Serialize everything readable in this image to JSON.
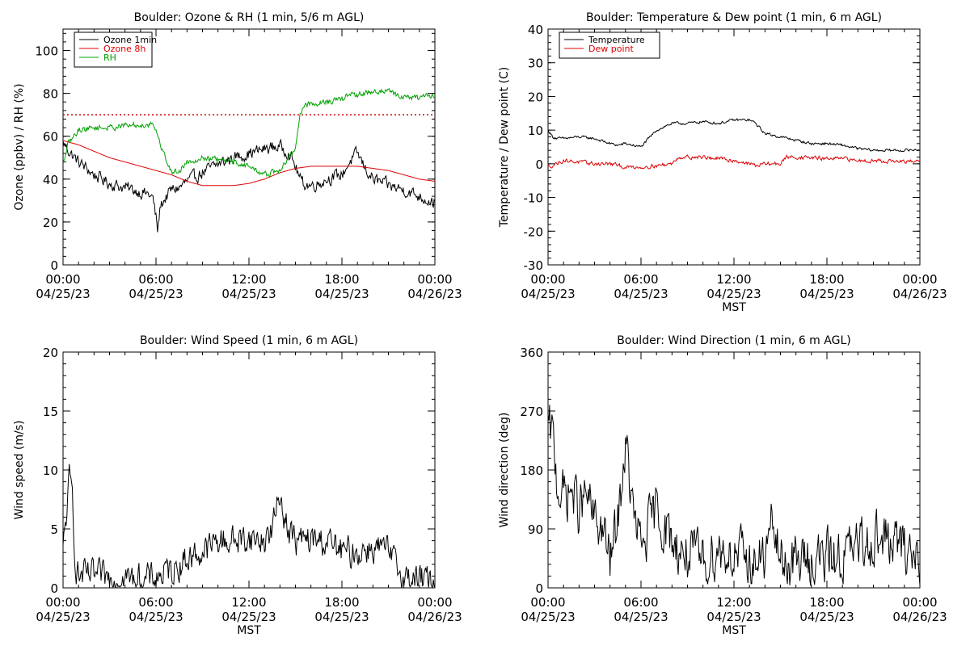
{
  "chart_data": [
    {
      "type": "line",
      "title": "Boulder: Ozone & RH (1 min, 5/6 m AGL)",
      "xlabel": "",
      "ylabel": "Ozone (ppbv) / RH (%)",
      "x_ticks": [
        {
          "time": "00:00",
          "date": "04/25/23"
        },
        {
          "time": "06:00",
          "date": "04/25/23"
        },
        {
          "time": "12:00",
          "date": "04/25/23"
        },
        {
          "time": "18:00",
          "date": "04/25/23"
        },
        {
          "time": "00:00",
          "date": "04/26/23"
        }
      ],
      "xlim": [
        0,
        24
      ],
      "ylim": [
        0,
        110
      ],
      "y_ticks": [
        0,
        20,
        40,
        60,
        80,
        100
      ],
      "legend_position": "top-left",
      "reference_line": {
        "y": 70,
        "color": "#cc0000",
        "style": "dotted"
      },
      "series": [
        {
          "name": "Ozone 1min",
          "color": "#000000",
          "noise": 2.5,
          "x": [
            0,
            0.5,
            1,
            2,
            3,
            4,
            5,
            5.5,
            5.8,
            6,
            6.1,
            6.3,
            6.7,
            7,
            7.5,
            8,
            9,
            10,
            11,
            12,
            13,
            13.5,
            14,
            14.5,
            15,
            15.3,
            15.5,
            16,
            16.5,
            17,
            18,
            18.5,
            19,
            19.5,
            20,
            21,
            22,
            23,
            24
          ],
          "y": [
            57,
            52,
            48,
            42,
            38,
            36,
            34,
            33,
            31,
            22,
            16,
            28,
            32,
            35,
            36,
            39,
            43,
            47,
            50,
            52,
            54,
            55,
            55,
            53,
            46,
            40,
            38,
            37,
            38,
            40,
            42,
            48,
            52,
            45,
            40,
            37,
            35,
            32,
            29
          ]
        },
        {
          "name": "Ozone 8h",
          "color": "#dd0000",
          "noise": 0,
          "x": [
            0,
            1,
            2,
            3,
            4,
            5,
            6,
            7,
            8,
            9,
            10,
            11,
            12,
            13,
            14,
            15,
            16,
            17,
            18,
            19,
            20,
            21,
            22,
            23,
            24
          ],
          "y": [
            58,
            56,
            53,
            50,
            48,
            46,
            44,
            42,
            39,
            37,
            37,
            37,
            38,
            40,
            43,
            45,
            46,
            46,
            46,
            46,
            45,
            44,
            42,
            40,
            39
          ]
        },
        {
          "name": "RH",
          "color": "#00a000",
          "noise": 1.2,
          "x": [
            0,
            0.3,
            1,
            2,
            3,
            4,
            5,
            5.8,
            6,
            6.2,
            6.5,
            7,
            7.5,
            8,
            9,
            10,
            11,
            12,
            13,
            14,
            14.6,
            15,
            15.3,
            15.6,
            16,
            17,
            18,
            18.5,
            19,
            20,
            21,
            22,
            23,
            24
          ],
          "y": [
            46,
            56,
            63,
            64,
            64,
            65,
            65,
            66,
            63,
            58,
            52,
            43,
            44,
            48,
            50,
            49,
            48,
            46,
            42,
            44,
            50,
            55,
            70,
            75,
            75,
            76,
            77,
            80,
            79,
            81,
            81,
            78,
            78,
            79
          ]
        }
      ]
    },
    {
      "type": "line",
      "title": "Boulder: Temperature & Dew point (1 min, 6 m AGL)",
      "xlabel": "MST",
      "ylabel": "Temperature / Dew point (C)",
      "x_ticks": [
        {
          "time": "00:00",
          "date": "04/25/23"
        },
        {
          "time": "06:00",
          "date": "04/25/23"
        },
        {
          "time": "12:00",
          "date": "04/25/23"
        },
        {
          "time": "18:00",
          "date": "04/25/23"
        },
        {
          "time": "00:00",
          "date": "04/26/23"
        }
      ],
      "xlim": [
        0,
        24
      ],
      "ylim": [
        -30,
        40
      ],
      "y_ticks": [
        -30,
        -20,
        -10,
        0,
        10,
        20,
        30,
        40
      ],
      "legend_position": "top-left",
      "series": [
        {
          "name": "Temperature",
          "color": "#000000",
          "noise": 0.35,
          "x": [
            0,
            0.3,
            0.6,
            1,
            2,
            3,
            4,
            4.5,
            5,
            5.5,
            6,
            7,
            8,
            9,
            10,
            11,
            12,
            13,
            13.4,
            14,
            15,
            16,
            17,
            18,
            19,
            20,
            21,
            22,
            23,
            24
          ],
          "y": [
            10,
            8,
            7.5,
            7.5,
            8,
            7.5,
            6,
            5.5,
            6,
            5.5,
            5,
            10,
            12,
            12,
            12.5,
            12,
            13,
            13,
            12,
            9,
            8,
            7,
            6,
            6,
            5.5,
            4.5,
            4,
            4,
            4,
            4.2
          ]
        },
        {
          "name": "Dew point",
          "color": "#dd0000",
          "noise": 0.5,
          "x": [
            0,
            0.5,
            1,
            2,
            3,
            4,
            5,
            6,
            7,
            8,
            8.4,
            9,
            10,
            11,
            12,
            13,
            13.5,
            14,
            15,
            15.4,
            16,
            17,
            18,
            19,
            20,
            21,
            22,
            23,
            24
          ],
          "y": [
            -1,
            0,
            1,
            0.5,
            0,
            0,
            -1,
            -1,
            -0.5,
            0,
            2,
            2,
            2,
            1.5,
            1,
            0,
            -0.5,
            0,
            0,
            2,
            2,
            1.8,
            1.5,
            1.5,
            1,
            1,
            0.8,
            0.5,
            0.8
          ]
        }
      ]
    },
    {
      "type": "line",
      "title": "Boulder: Wind Speed (1 min, 6 m AGL)",
      "xlabel": "MST",
      "ylabel": "Wind speed (m/s)",
      "x_ticks": [
        {
          "time": "00:00",
          "date": "04/25/23"
        },
        {
          "time": "06:00",
          "date": "04/25/23"
        },
        {
          "time": "12:00",
          "date": "04/25/23"
        },
        {
          "time": "18:00",
          "date": "04/25/23"
        },
        {
          "time": "00:00",
          "date": "04/26/23"
        }
      ],
      "xlim": [
        0,
        24
      ],
      "ylim": [
        0,
        20
      ],
      "y_ticks": [
        0,
        5,
        10,
        15,
        20
      ],
      "series": [
        {
          "name": "",
          "color": "#000000",
          "noise": 1.1,
          "clip_min": 0,
          "x": [
            0,
            0.2,
            0.4,
            0.6,
            0.8,
            1,
            2,
            3,
            4,
            5,
            6,
            7,
            8,
            9,
            10,
            11,
            12,
            13,
            13.5,
            14,
            14.5,
            15,
            16,
            17,
            18,
            19,
            20,
            21,
            22,
            23,
            24
          ],
          "y": [
            3,
            6,
            9,
            8,
            2,
            1,
            1,
            0.8,
            0.8,
            0.7,
            0.9,
            1.5,
            2.5,
            3,
            4,
            4,
            4.2,
            4,
            5,
            8,
            5,
            4,
            4,
            4,
            3,
            3,
            3.5,
            3,
            0.8,
            0.8,
            0.6
          ]
        }
      ]
    },
    {
      "type": "line",
      "title": "Boulder: Wind Direction (1 min, 6 m AGL)",
      "xlabel": "MST",
      "ylabel": "Wind direction (deg)",
      "x_ticks": [
        {
          "time": "00:00",
          "date": "04/25/23"
        },
        {
          "time": "06:00",
          "date": "04/25/23"
        },
        {
          "time": "12:00",
          "date": "04/25/23"
        },
        {
          "time": "18:00",
          "date": "04/25/23"
        },
        {
          "time": "00:00",
          "date": "04/26/23"
        }
      ],
      "xlim": [
        0,
        24
      ],
      "ylim": [
        0,
        360
      ],
      "y_ticks": [
        0,
        90,
        180,
        270,
        360
      ],
      "series": [
        {
          "name": "",
          "color": "#000000",
          "noise": 35,
          "clip_min": 0,
          "clip_max": 360,
          "x": [
            0,
            0.3,
            0.6,
            1,
            1.5,
            2,
            2.5,
            3,
            3.5,
            4,
            4.5,
            5,
            5.5,
            6,
            7,
            8,
            9,
            10,
            11,
            12,
            13,
            14,
            14.5,
            15,
            16,
            17,
            18,
            19,
            20,
            21,
            22,
            23,
            24
          ],
          "y": [
            240,
            230,
            160,
            140,
            150,
            120,
            140,
            100,
            90,
            40,
            100,
            220,
            110,
            60,
            120,
            70,
            50,
            40,
            60,
            50,
            40,
            45,
            100,
            40,
            40,
            45,
            45,
            50,
            60,
            80,
            70,
            60,
            50
          ]
        }
      ]
    }
  ]
}
